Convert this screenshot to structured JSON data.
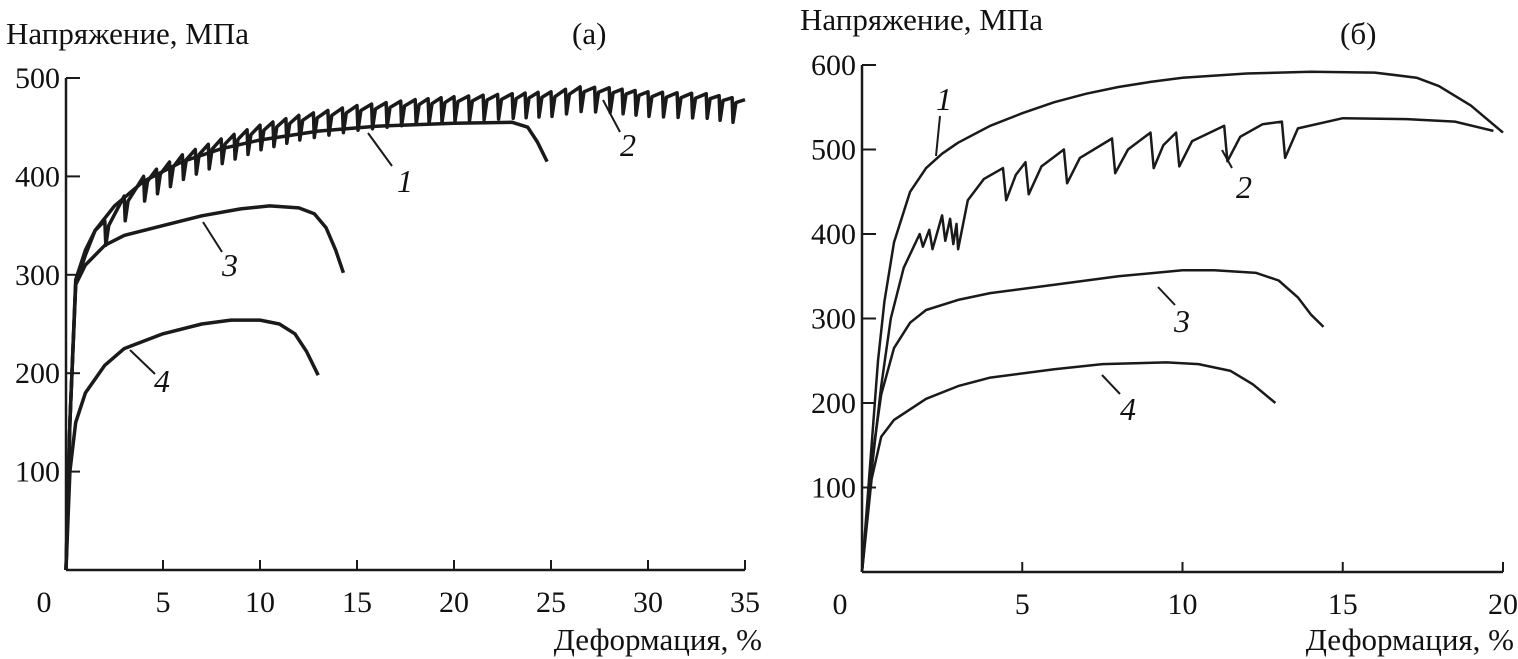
{
  "chart_data": [
    {
      "type": "line",
      "panel_label": "(а)",
      "ylabel": "Напряжение, МПа",
      "xlabel": "Деформация, %",
      "xlim": [
        0,
        35
      ],
      "ylim": [
        0,
        500
      ],
      "xticks": [
        0,
        5,
        10,
        15,
        20,
        25,
        30,
        35
      ],
      "yticks": [
        100,
        200,
        300,
        400,
        500
      ],
      "grid": false,
      "line_color": "#1a1a1a",
      "series": [
        {
          "name": "1",
          "points": [
            [
              0,
              0
            ],
            [
              0.2,
              150
            ],
            [
              0.5,
              290
            ],
            [
              1,
              320
            ],
            [
              1.5,
              345
            ],
            [
              2.5,
              370
            ],
            [
              4,
              395
            ],
            [
              6,
              415
            ],
            [
              8,
              428
            ],
            [
              10,
              437
            ],
            [
              13,
              446
            ],
            [
              16,
              451
            ],
            [
              20,
              454
            ],
            [
              23,
              455
            ],
            [
              23.8,
              450
            ],
            [
              24.3,
              435
            ],
            [
              24.8,
              415
            ]
          ]
        },
        {
          "name": "2",
          "serrated": true,
          "points": [
            [
              0,
              0
            ],
            [
              0.2,
              150
            ],
            [
              0.5,
              295
            ],
            [
              1,
              325
            ],
            [
              1.5,
              345
            ],
            [
              2,
              355
            ],
            [
              3,
              380
            ],
            [
              4,
              400
            ],
            [
              6,
              422
            ],
            [
              8,
              438
            ],
            [
              10,
              452
            ],
            [
              12,
              462
            ],
            [
              15,
              472
            ],
            [
              18,
              478
            ],
            [
              20,
              481
            ],
            [
              23,
              484
            ],
            [
              25,
              486
            ],
            [
              26.5,
              491
            ],
            [
              28,
              490
            ],
            [
              30,
              486
            ],
            [
              33,
              484
            ],
            [
              35,
              478
            ]
          ]
        },
        {
          "name": "3",
          "points": [
            [
              0,
              0
            ],
            [
              0.2,
              150
            ],
            [
              0.5,
              290
            ],
            [
              1,
              310
            ],
            [
              2,
              330
            ],
            [
              3,
              340
            ],
            [
              5,
              350
            ],
            [
              7,
              360
            ],
            [
              9,
              367
            ],
            [
              10.5,
              370
            ],
            [
              12,
              368
            ],
            [
              12.8,
              362
            ],
            [
              13.4,
              348
            ],
            [
              13.9,
              325
            ],
            [
              14.3,
              302
            ]
          ]
        },
        {
          "name": "4",
          "points": [
            [
              0,
              0
            ],
            [
              0.2,
              100
            ],
            [
              0.5,
              150
            ],
            [
              1,
              180
            ],
            [
              2,
              208
            ],
            [
              3,
              225
            ],
            [
              5,
              240
            ],
            [
              7,
              250
            ],
            [
              8.5,
              254
            ],
            [
              10,
              254
            ],
            [
              11,
              250
            ],
            [
              11.8,
              240
            ],
            [
              12.4,
              222
            ],
            [
              13,
              198
            ]
          ]
        }
      ]
    },
    {
      "type": "line",
      "panel_label": "(б)",
      "ylabel": "Напряжение, МПа",
      "xlabel": "Деформация, %",
      "xlim": [
        0,
        20
      ],
      "ylim": [
        0,
        600
      ],
      "xticks": [
        0,
        5,
        10,
        15,
        20
      ],
      "yticks": [
        100,
        200,
        300,
        400,
        500,
        600
      ],
      "grid": false,
      "line_color": "#1a1a1a",
      "series": [
        {
          "name": "1",
          "points": [
            [
              0,
              0
            ],
            [
              0.3,
              150
            ],
            [
              0.5,
              250
            ],
            [
              0.7,
              320
            ],
            [
              1,
              390
            ],
            [
              1.5,
              450
            ],
            [
              2,
              478
            ],
            [
              2.5,
              495
            ],
            [
              3,
              508
            ],
            [
              4,
              528
            ],
            [
              5,
              543
            ],
            [
              6,
              556
            ],
            [
              7,
              566
            ],
            [
              8,
              574
            ],
            [
              9,
              580
            ],
            [
              10,
              585
            ],
            [
              12,
              590
            ],
            [
              14,
              592
            ],
            [
              16,
              591
            ],
            [
              17.3,
              585
            ],
            [
              18,
              575
            ],
            [
              19,
              552
            ],
            [
              20,
              520
            ]
          ]
        },
        {
          "name": "2",
          "points": [
            [
              0,
              0
            ],
            [
              0.3,
              120
            ],
            [
              0.6,
              220
            ],
            [
              0.9,
              300
            ],
            [
              1.3,
              360
            ],
            [
              1.8,
              400
            ],
            [
              1.9,
              385
            ],
            [
              2.1,
              405
            ],
            [
              2.2,
              382
            ],
            [
              2.5,
              422
            ],
            [
              2.6,
              392
            ],
            [
              2.75,
              418
            ],
            [
              2.85,
              388
            ],
            [
              2.95,
              412
            ],
            [
              3.0,
              382
            ],
            [
              3.3,
              440
            ],
            [
              3.8,
              465
            ],
            [
              4.4,
              478
            ],
            [
              4.5,
              440
            ],
            [
              4.8,
              470
            ],
            [
              5.1,
              485
            ],
            [
              5.2,
              447
            ],
            [
              5.6,
              480
            ],
            [
              6.3,
              500
            ],
            [
              6.4,
              460
            ],
            [
              6.8,
              490
            ],
            [
              7.8,
              513
            ],
            [
              7.9,
              472
            ],
            [
              8.3,
              500
            ],
            [
              9.0,
              520
            ],
            [
              9.1,
              478
            ],
            [
              9.4,
              505
            ],
            [
              9.8,
              520
            ],
            [
              9.9,
              480
            ],
            [
              10.3,
              510
            ],
            [
              11.3,
              528
            ],
            [
              11.4,
              486
            ],
            [
              11.8,
              515
            ],
            [
              12.5,
              530
            ],
            [
              13.1,
              533
            ],
            [
              13.2,
              490
            ],
            [
              13.6,
              525
            ],
            [
              15,
              537
            ],
            [
              17,
              536
            ],
            [
              18.5,
              533
            ],
            [
              19.7,
              522
            ]
          ]
        },
        {
          "name": "3",
          "points": [
            [
              0,
              0
            ],
            [
              0.3,
              130
            ],
            [
              0.6,
              210
            ],
            [
              1,
              265
            ],
            [
              1.5,
              295
            ],
            [
              2,
              310
            ],
            [
              3,
              322
            ],
            [
              4,
              330
            ],
            [
              6,
              340
            ],
            [
              8,
              350
            ],
            [
              10,
              357
            ],
            [
              11,
              357
            ],
            [
              12.3,
              354
            ],
            [
              13,
              345
            ],
            [
              13.6,
              325
            ],
            [
              14,
              305
            ],
            [
              14.4,
              290
            ]
          ]
        },
        {
          "name": "4",
          "points": [
            [
              0,
              0
            ],
            [
              0.3,
              110
            ],
            [
              0.6,
              160
            ],
            [
              1,
              180
            ],
            [
              2,
              205
            ],
            [
              3,
              220
            ],
            [
              4,
              230
            ],
            [
              6,
              240
            ],
            [
              7.5,
              246
            ],
            [
              9.5,
              248
            ],
            [
              10.5,
              246
            ],
            [
              11.5,
              238
            ],
            [
              12.2,
              222
            ],
            [
              12.9,
              200
            ]
          ]
        }
      ]
    }
  ]
}
